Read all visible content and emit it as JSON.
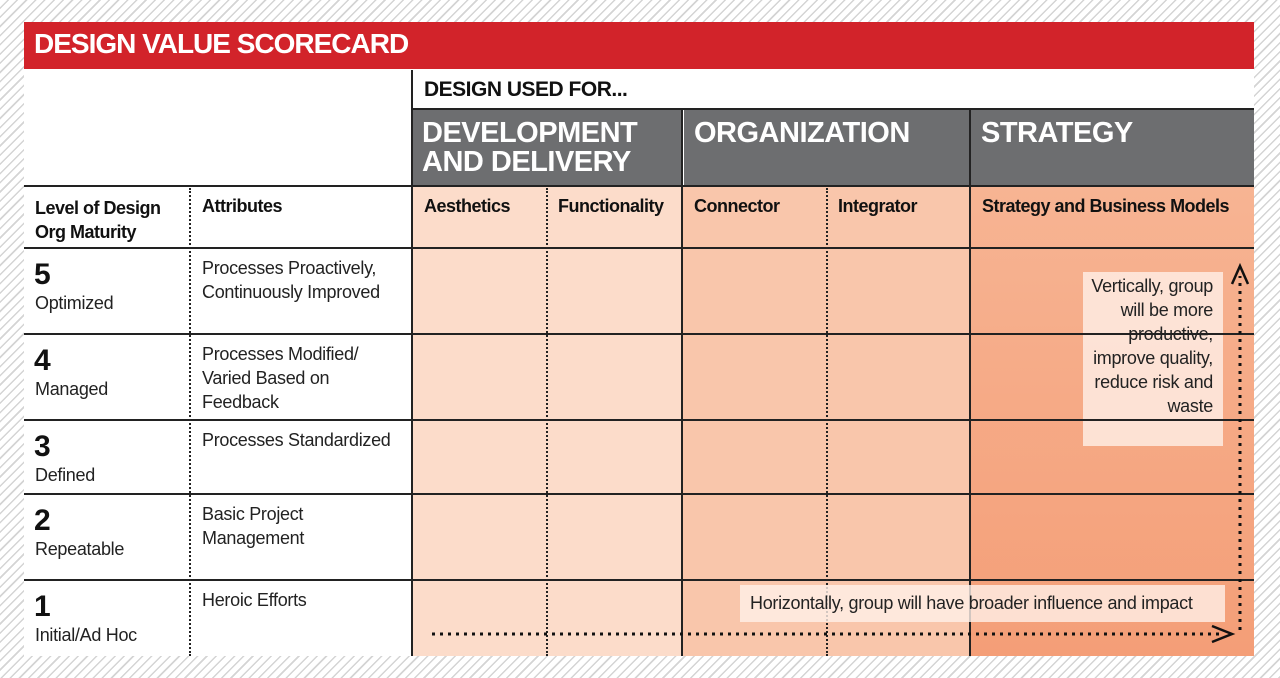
{
  "title": "DESIGN VALUE SCORECARD",
  "header": {
    "used_for": "DESIGN USED FOR...",
    "groups": [
      "DEVELOPMENT AND DELIVERY",
      "ORGANIZATION",
      "STRATEGY"
    ]
  },
  "columns": {
    "level": "Level of Design Org Maturity",
    "attributes": "Attributes",
    "sub": [
      "Aesthetics",
      "Functionality",
      "Connector",
      "Integrator",
      "Strategy and Business Models"
    ]
  },
  "rows": [
    {
      "level": 5,
      "name": "Optimized",
      "attributes": "Processes Proactively, Continuously Improved"
    },
    {
      "level": 4,
      "name": "Managed",
      "attributes": "Processes Modified/ Varied Based on Feedback"
    },
    {
      "level": 3,
      "name": "Defined",
      "attributes": "Processes Standardized"
    },
    {
      "level": 2,
      "name": "Repeatable",
      "attributes": "Basic Project Management"
    },
    {
      "level": 1,
      "name": "Initial/Ad Hoc",
      "attributes": "Heroic Efforts"
    }
  ],
  "notes": {
    "vertical": "Vertically, group will be more productive, improve quality, reduce risk and waste",
    "horizontal": "Horizontally, group will have broader influence and impact"
  }
}
